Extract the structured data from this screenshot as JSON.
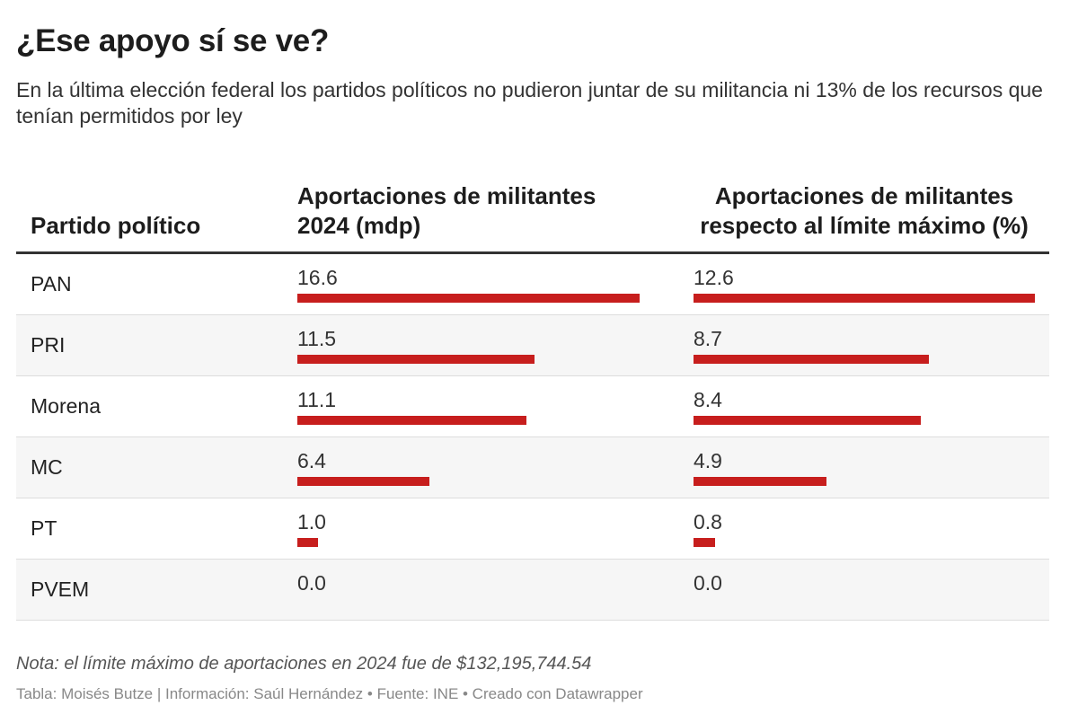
{
  "title": "¿Ese apoyo sí se ve?",
  "subtitle": "En la última elección federal los partidos políticos no pudieron juntar de su militancia ni 13% de los recursos que tenían permitidos por ley",
  "headers": {
    "party": "Partido político",
    "col2_line1": "Aportaciones de militantes",
    "col2_line2": "2024 (mdp)",
    "col3_line1": "Aportaciones de militantes",
    "col3_line2": "respecto al límite máximo (%)"
  },
  "bar_color": "#c71e1d",
  "rows": [
    {
      "party": "PAN",
      "mdp": "16.6",
      "pct": "12.6"
    },
    {
      "party": "PRI",
      "mdp": "11.5",
      "pct": "8.7"
    },
    {
      "party": "Morena",
      "mdp": "11.1",
      "pct": "8.4"
    },
    {
      "party": "MC",
      "mdp": "6.4",
      "pct": "4.9"
    },
    {
      "party": "PT",
      "mdp": "1.0",
      "pct": "0.8"
    },
    {
      "party": "PVEM",
      "mdp": "0.0",
      "pct": "0.0"
    }
  ],
  "note": "Nota: el límite máximo de aportaciones en 2024 fue de $132,195,744.54",
  "credit": "Tabla: Moisés Butze | Información: Saúl Hernández • Fuente: INE • Creado con Datawrapper"
}
